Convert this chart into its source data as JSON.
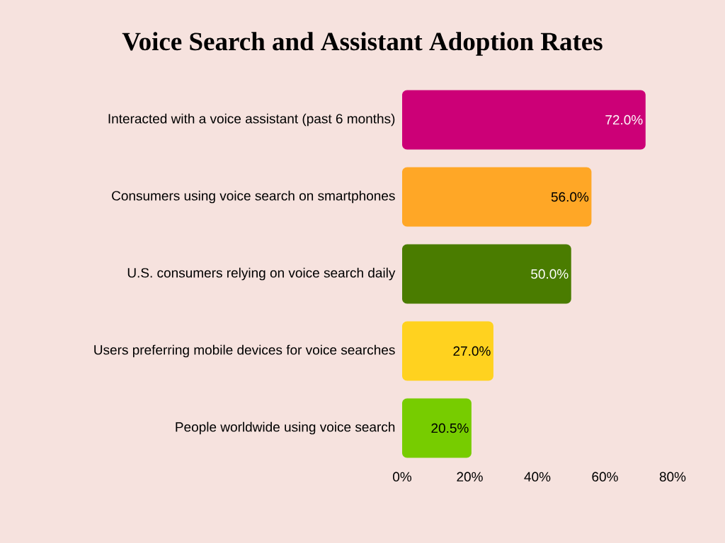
{
  "chart_data": {
    "type": "bar",
    "orientation": "horizontal",
    "title": "Voice Search and Assistant Adoption Rates",
    "categories": [
      "Interacted with a voice assistant (past 6 months)",
      "Consumers using voice search on smartphones",
      "U.S. consumers relying on voice search daily",
      "Users preferring mobile devices for voice searches",
      "People worldwide using voice search"
    ],
    "values": [
      72.0,
      56.0,
      50.0,
      27.0,
      20.5
    ],
    "value_labels": [
      "72.0%",
      "56.0%",
      "50.0%",
      "27.0%",
      "20.5%"
    ],
    "colors": [
      "#cc0077",
      "#ffa726",
      "#4a7c00",
      "#ffd21f",
      "#77cc00"
    ],
    "xlim": [
      0,
      80
    ],
    "xticks": [
      {
        "value": 0,
        "label": "0%"
      },
      {
        "value": 20,
        "label": "20%"
      },
      {
        "value": 40,
        "label": "40%"
      },
      {
        "value": 60,
        "label": "60%"
      },
      {
        "value": 80,
        "label": "80%"
      }
    ]
  }
}
